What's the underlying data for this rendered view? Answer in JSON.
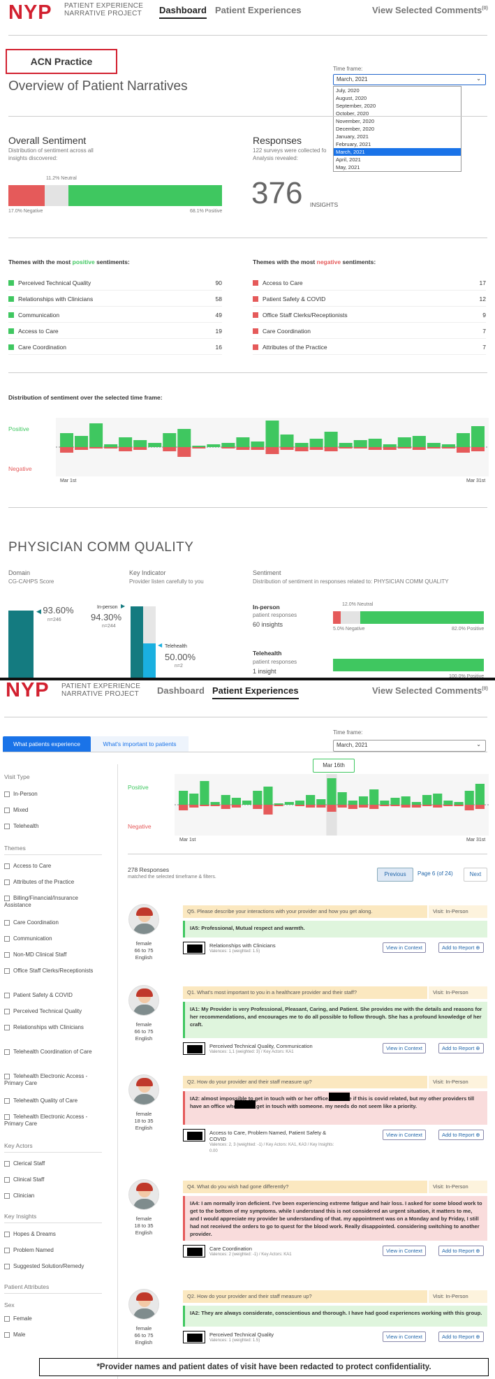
{
  "header": {
    "logo": "NYP",
    "sub1": "PATIENT EXPERIENCE",
    "sub2": "NARRATIVE PROJECT",
    "nav": [
      "Dashboard",
      "Patient Experiences",
      "View Selected Comments"
    ],
    "selected_count": "(0)"
  },
  "badge": "ACN Practice",
  "dashboard": {
    "title": "Overview of Patient Narratives",
    "timeframe_label": "Time frame:",
    "timeframe_value": "March, 2021",
    "timeframe_options": [
      "July, 2020",
      "August, 2020",
      "September, 2020",
      "October, 2020",
      "November, 2020",
      "December, 2020",
      "January, 2021",
      "February, 2021",
      "March, 2021",
      "April, 2021",
      "May, 2021"
    ],
    "sentiment_title": "Overall Sentiment",
    "sentiment_desc1": "Distribution of sentiment across all",
    "sentiment_desc2": "insights discovered:",
    "neutral_label": "11.2% Neutral",
    "negative_label": "17.0% Negative",
    "positive_label": "68.1% Positive",
    "sentiment_fractions": {
      "negative": 0.17,
      "neutral": 0.112,
      "positive": 0.681
    },
    "responses_title": "Responses",
    "responses_desc1": "122 surveys were collected fo",
    "responses_desc2": "Analysis revealed:",
    "insights_count": "376",
    "insights_label": "INSIGHTS",
    "pos_themes_pre": "Themes with the most ",
    "pos_themes_word": "positive",
    "pos_themes_post": " sentiments:",
    "neg_themes_pre": "Themes with the most ",
    "neg_themes_word": "negative",
    "neg_themes_post": " sentiments:",
    "positive_themes": [
      {
        "name": "Perceived Technical Quality",
        "count": "90"
      },
      {
        "name": "Relationships with Clinicians",
        "count": "58"
      },
      {
        "name": "Communication",
        "count": "49"
      },
      {
        "name": "Access to Care",
        "count": "19"
      },
      {
        "name": "Care Coordination",
        "count": "16"
      }
    ],
    "negative_themes": [
      {
        "name": "Access to Care",
        "count": "17"
      },
      {
        "name": "Patient Safety & COVID",
        "count": "12"
      },
      {
        "name": "Office Staff Clerks/Receptionists",
        "count": "9"
      },
      {
        "name": "Care Coordination",
        "count": "7"
      },
      {
        "name": "Attributes of the Practice",
        "count": "7"
      }
    ],
    "dist_title": "Distribution of sentiment over the selected time frame:",
    "positive": "Positive",
    "negative": "Negative",
    "start": "Mar 1st",
    "end": "Mar 31st",
    "pcq_title": "PHYSICIAN COMM QUALITY",
    "domain_label": "Domain",
    "domain_value": "CG-CAHPS Score",
    "ki_label": "Key Indicator",
    "ki_value": "Provider listen carefully to you",
    "sent_label": "Sentiment",
    "sent_value": "Distribution of sentiment in responses related to: PHYSICIAN COMM QUALITY",
    "domain_pct": "93.60%",
    "domain_n": "n=246",
    "inperson_label": "In-person",
    "inperson_pct": "94.30%",
    "inperson_n": "n=244",
    "tele_label": "Telehealth",
    "tele_pct": "50.00%",
    "tele_n": "n=2",
    "ip_title": "In-person",
    "ip_sub": "patient responses",
    "ip_ins": "60 insights",
    "ip_neutral": "12.0% Neutral",
    "ip_negative": "5.0% Negative",
    "ip_positive": "82.0% Positive",
    "th_title": "Telehealth",
    "th_sub": "patient responses",
    "th_ins": "1 insight",
    "th_positive": "100.0% Positive"
  },
  "pe": {
    "tab_active": "What patients experience",
    "tab_other": "What's important to patients",
    "timeframe_label": "Time frame:",
    "timeframe_value": "March, 2021",
    "tooltip": "Mar 16th",
    "positive": "Positive",
    "negative": "Negative",
    "start": "Mar 1st",
    "end": "Mar 31st",
    "responses": "278 Responses",
    "responses_sub": "matched the selected timeframe & filters.",
    "prev": "Previous",
    "page": "Page 6 (of 24)",
    "next": "Next",
    "filter_visit": "Visit Type",
    "visit": [
      "In-Person",
      "Mixed",
      "Telehealth"
    ],
    "filter_themes": "Themes",
    "themes": [
      "Access to Care",
      "Attributes of the Practice",
      "Billing/Financial/Insurance Assistance",
      "Care Coordination",
      "Communication",
      "Non-MD Clinical Staff",
      "Office Staff Clerks/Receptionists",
      "Patient Safety & COVID",
      "Perceived Technical Quality",
      "Relationships with Clinicians",
      "Telehealth Coordination of Care",
      "Telehealth Electronic Access - Primary Care",
      "Telehealth Quality of Care",
      "Telehealth Electronic Access - Primary Care"
    ],
    "filter_actors": "Key Actors",
    "actors": [
      "Clerical Staff",
      "Clinical Staff",
      "Clinician"
    ],
    "filter_insights": "Key Insights",
    "insights": [
      "Hopes & Dreams",
      "Problem Named",
      "Suggested Solution/Remedy"
    ],
    "filter_attr": "Patient Attributes",
    "filter_sex": "Sex",
    "sex": [
      "Female",
      "Male"
    ],
    "cards": [
      {
        "q": "Q5. Please describe your interactions with your provider and how you get along.",
        "visit": "Visit: In-Person",
        "a": "IA5: Professional, Mutual respect and warmth.",
        "sent": "pos",
        "sex": "female",
        "age": "66 to 75",
        "lang": "English",
        "themes": "Relationships with Clinicians",
        "val": "Valences: 1 (weighted: 1.5)"
      },
      {
        "q": "Q1. What's most important to you in a healthcare provider and their staff?",
        "visit": "Visit: In-Person",
        "a": "IA1: My Provider is very Professional, Pleasant, Caring, and Patient. She provides me with the details and reasons for her recommendations, and encourages me to do all possible to follow through. She has a profound knowledge of her craft.",
        "sent": "pos",
        "sex": "female",
        "age": "66 to 75",
        "lang": "English",
        "themes": "Perceived Technical Quality, Communication",
        "val": "Valences: 1,1 (weighted: 3) / Key Actors: KA1"
      },
      {
        "q": "Q2. How do your provider and their staff measure up?",
        "visit": "Visit: In-Person",
        "a": "IA2: almost impossible to get in touch with       or her office. not sure if this is covid related, but my other providers       till have an office where I can get in touch with someone. my needs do not seem like a priority.",
        "sent": "neg",
        "sex": "female",
        "age": "18 to 35",
        "lang": "English",
        "themes": "Access to Care, Problem Named, Patient Safety & COVID",
        "val": "Valences: 2, 3 (weighted: -1) / Key Actors: KA1, KA3 / Key Insights: 0.00"
      },
      {
        "q": "Q4. What do you wish had gone differently?",
        "visit": "Visit: In-Person",
        "a": "IA4: I am normally iron deficient. I've been experiencing extreme fatigue and hair loss. I asked for some blood work to get to the bottom of my symptoms. while I understand this is not considered an urgent situation, it matters to me, and I would appreciate my provider be understanding of that. my appointment was on a Monday and by Friday, I still had not received the orders to go to quest for the blood work. Really disappointed. considering switching to another provider.",
        "sent": "neg",
        "sex": "female",
        "age": "18 to 35",
        "lang": "English",
        "themes": "Care Coordination",
        "val": "Valences: 2 (weighted: -1) / Key Actors: KA1"
      },
      {
        "q": "Q2. How do your provider and their staff measure up?",
        "visit": "Visit: In-Person",
        "a": "IA2: They are always considerate, conscientious and thorough. I have had good experiences working with this group.",
        "sent": "pos",
        "sex": "female",
        "age": "66 to 75",
        "lang": "English",
        "themes": "Perceived Technical Quality",
        "val": "Valences: 1 (weighted: 1.5)"
      }
    ],
    "view_ctx": "View in Context",
    "add_report": "Add to Report"
  },
  "footer": "*Provider names and patient dates of visit have been redacted to protect confidentiality.",
  "colors": {
    "brand": "#d2202f",
    "positive": "#3fc760",
    "negative": "#e55a5a",
    "teal": "#147b80",
    "blue": "#1a73e8"
  }
}
